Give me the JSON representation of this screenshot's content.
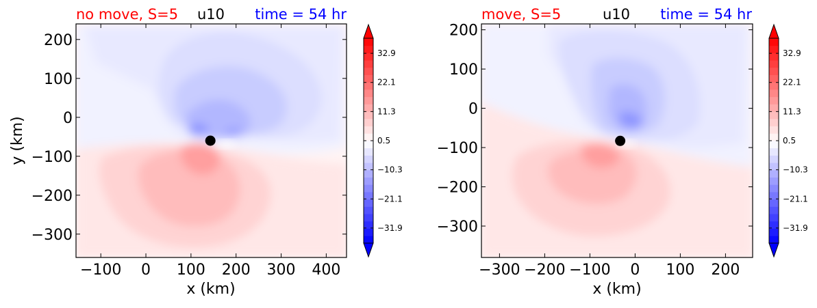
{
  "panels": [
    {
      "title_left": "no move, S=5",
      "title_center": "u10",
      "title_right": "time = 54 hr",
      "xlabel": "x (km)",
      "ylabel": "y (km)"
    },
    {
      "title_left": "move, S=5",
      "title_center": "u10",
      "title_right": "time = 54 hr",
      "xlabel": "x (km)",
      "ylabel": ""
    }
  ],
  "colors": {
    "title_left": "#ff0000",
    "title_center": "#000000",
    "title_right": "#0000ff",
    "positive_max": "#ff0000",
    "negative_max": "#0000ff",
    "neutral": "#ffffff",
    "marker": "#000000"
  },
  "chart_data": [
    {
      "type": "heatmap",
      "variable": "u10",
      "title": "no move, S=5   u10   time = 54 hr",
      "xlabel": "x (km)",
      "ylabel": "y (km)",
      "xlim": [
        -155,
        445
      ],
      "ylim": [
        -360,
        240
      ],
      "xticks": [
        -100,
        0,
        100,
        200,
        300,
        400
      ],
      "yticks": [
        200,
        100,
        0,
        -100,
        -200,
        -300
      ],
      "center_marker": {
        "x": 143,
        "y": -60
      },
      "colorbar": {
        "min": -37.5,
        "max": 38.5,
        "ticks": [
          32.9,
          22.1,
          11.3,
          0.5,
          -10.3,
          -21.1,
          -31.9
        ],
        "extend": "both"
      }
    },
    {
      "type": "heatmap",
      "variable": "u10",
      "title": "move, S=5   u10   time = 54 hr",
      "xlabel": "x (km)",
      "ylabel": "",
      "xlim": [
        -340,
        260
      ],
      "ylim": [
        -380,
        215
      ],
      "xticks": [
        -300,
        -200,
        -100,
        0,
        100,
        200
      ],
      "yticks": [
        200,
        100,
        0,
        -100,
        -200,
        -300
      ],
      "center_marker": {
        "x": -33,
        "y": -83
      },
      "colorbar": {
        "min": -37.5,
        "max": 38.5,
        "ticks": [
          32.9,
          22.1,
          11.3,
          0.5,
          -10.3,
          -21.1,
          -31.9
        ],
        "extend": "both"
      }
    }
  ]
}
